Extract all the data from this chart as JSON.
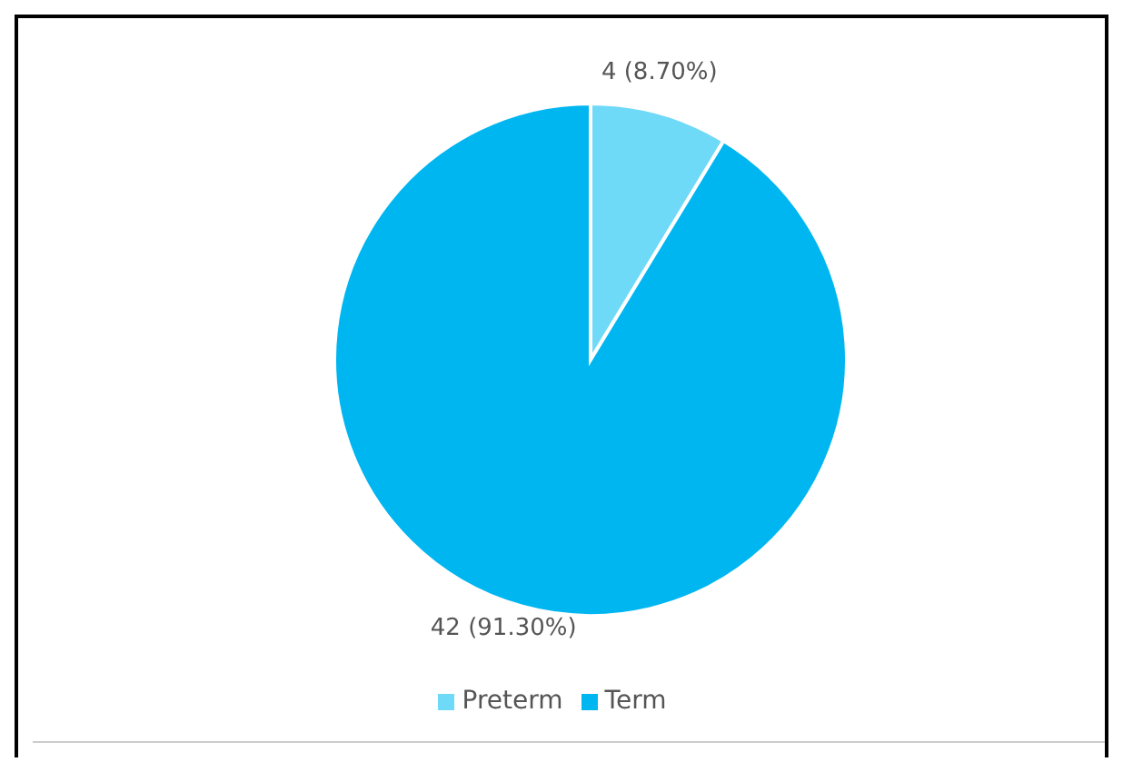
{
  "chart_data": {
    "type": "pie",
    "categories": [
      "Preterm",
      "Term"
    ],
    "values": [
      4,
      42
    ],
    "colors": [
      "#6fd9f8",
      "#00b6f1"
    ],
    "value_labels": [
      "4 (8.70%)",
      "42 (91.30%)"
    ],
    "legend": "bottom"
  }
}
